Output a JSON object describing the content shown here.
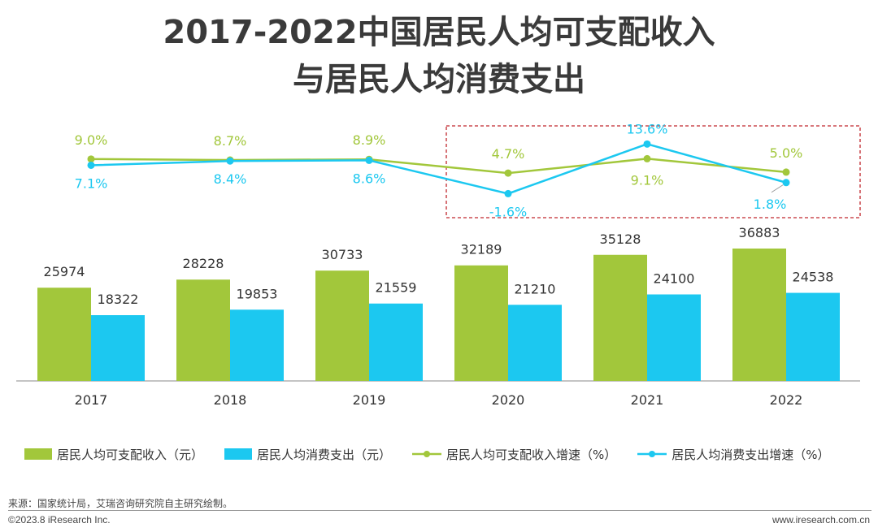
{
  "title_line1": "2017-2022中国居民人均可支配收入",
  "title_line2": "与居民人均消费支出",
  "colors": {
    "income": "#a2c73b",
    "expense": "#1cc8f0",
    "highlight_box": "#c0272d",
    "axis": "#888888"
  },
  "legend": {
    "income_bar": "居民人均可支配收入（元）",
    "expense_bar": "居民人均消费支出（元）",
    "income_growth": "居民人均可支配收入增速（%）",
    "expense_growth": "居民人均消费支出增速（%）"
  },
  "chart_data": {
    "type": "bar",
    "categories": [
      "2017",
      "2018",
      "2019",
      "2020",
      "2021",
      "2022"
    ],
    "series": [
      {
        "name": "居民人均可支配收入（元）",
        "type": "bar",
        "values": [
          25974,
          28228,
          30733,
          32189,
          35128,
          36883
        ]
      },
      {
        "name": "居民人均消费支出（元）",
        "type": "bar",
        "values": [
          18322,
          19853,
          21559,
          21210,
          24100,
          24538
        ]
      },
      {
        "name": "居民人均可支配收入增速（%）",
        "type": "line",
        "values": [
          9.0,
          8.7,
          8.9,
          4.7,
          9.1,
          5.0
        ],
        "labels": [
          "9.0%",
          "8.7%",
          "8.9%",
          "4.7%",
          "9.1%",
          "5.0%"
        ]
      },
      {
        "name": "居民人均消费支出增速（%）",
        "type": "line",
        "values": [
          7.1,
          8.4,
          8.6,
          -1.6,
          13.6,
          1.8
        ],
        "labels": [
          "7.1%",
          "8.4%",
          "8.6%",
          "-1.6%",
          "13.6%",
          "1.8%"
        ]
      }
    ],
    "highlight_categories": [
      "2020",
      "2021",
      "2022"
    ]
  },
  "source_text": "来源：国家统计局，艾瑞咨询研究院自主研究绘制。",
  "copyright": "©2023.8 iResearch Inc.",
  "website": "www.iresearch.com.cn"
}
